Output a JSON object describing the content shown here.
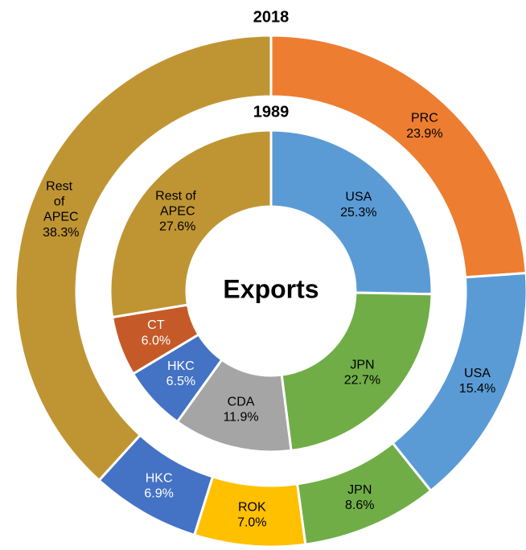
{
  "chart_data": {
    "type": "donut",
    "title": "Exports",
    "series": [
      {
        "name": "2018",
        "categories": [
          "PRC",
          "USA",
          "JPN",
          "ROK",
          "HKC",
          "Rest of APEC"
        ],
        "values": [
          23.9,
          15.4,
          8.6,
          7.0,
          6.9,
          38.3
        ],
        "value_labels": [
          "23.9%",
          "15.4%",
          "8.6%",
          "7.0%",
          "6.9%",
          "38.3%"
        ],
        "colors": [
          "#ed7d31",
          "#5b9bd5",
          "#70ad47",
          "#ffc000",
          "#4472c4",
          "#bf9534"
        ]
      },
      {
        "name": "1989",
        "categories": [
          "USA",
          "JPN",
          "CDA",
          "HKC",
          "CT",
          "Rest of APEC"
        ],
        "values": [
          25.3,
          22.7,
          11.9,
          6.5,
          6.0,
          27.6
        ],
        "value_labels": [
          "25.3%",
          "22.7%",
          "11.9%",
          "6.5%",
          "6.0%",
          "27.6%"
        ],
        "colors": [
          "#5b9bd5",
          "#70ad47",
          "#a5a5a5",
          "#4472c4",
          "#c55a28",
          "#bf9534"
        ]
      }
    ]
  }
}
